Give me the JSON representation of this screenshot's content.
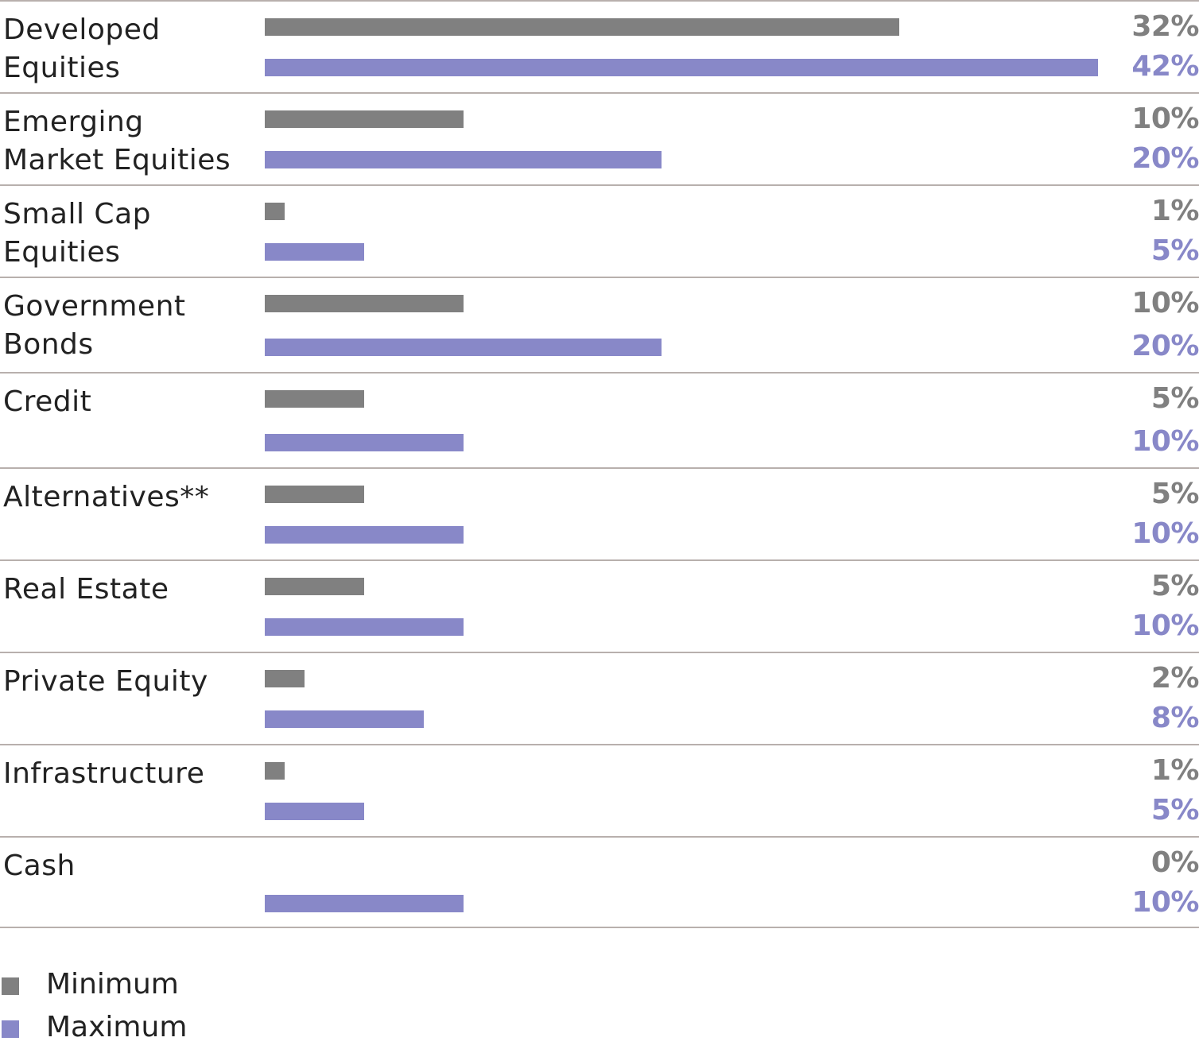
{
  "chart_data": {
    "type": "bar",
    "orientation": "horizontal",
    "categories": [
      "Developed Equities",
      "Emerging Market Equities",
      "Small Cap Equities",
      "Government Bonds",
      "Credit",
      "Alternatives**",
      "Real Estate",
      "Private Equity",
      "Infrastructure",
      "Cash"
    ],
    "series": [
      {
        "name": "Minimum",
        "values": [
          32,
          10,
          1,
          10,
          5,
          5,
          5,
          2,
          1,
          0
        ],
        "labels": [
          "32%",
          "10%",
          "1%",
          "10%",
          "5%",
          "5%",
          "5%",
          "2%",
          "1%",
          "0%"
        ]
      },
      {
        "name": "Maximum",
        "values": [
          42,
          20,
          5,
          20,
          10,
          10,
          10,
          8,
          5,
          10
        ],
        "labels": [
          "42%",
          "20%",
          "5%",
          "20%",
          "10%",
          "10%",
          "10%",
          "8%",
          "5%",
          "10%"
        ]
      }
    ],
    "unit": "%",
    "xlim": [
      0,
      42
    ],
    "legend_position": "bottom-left",
    "colors": {
      "Minimum": "#808080",
      "Maximum": "#8888c8"
    }
  },
  "label_lines": [
    [
      "Developed",
      "Equities"
    ],
    [
      "Emerging",
      "Market Equities"
    ],
    [
      "Small Cap",
      "Equities"
    ],
    [
      "Government",
      "Bonds"
    ],
    [
      "Credit"
    ],
    [
      "Alternatives**"
    ],
    [
      "Real Estate"
    ],
    [
      "Private Equity"
    ],
    [
      "Infrastructure"
    ],
    [
      "Cash"
    ]
  ],
  "legend": {
    "minimum_label": "Minimum",
    "maximum_label": "Maximum"
  }
}
